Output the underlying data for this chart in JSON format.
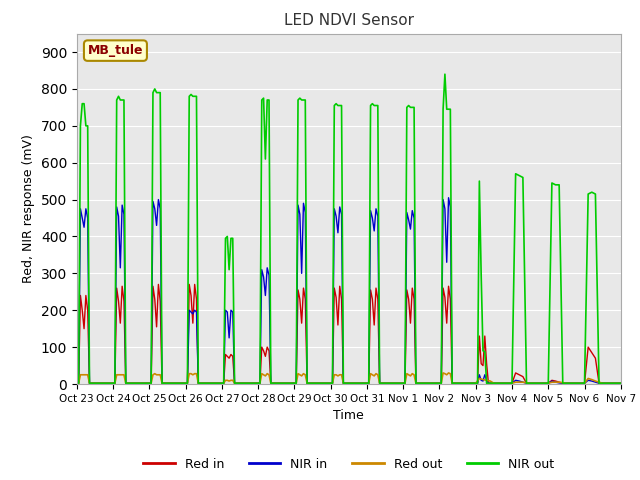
{
  "title": "LED NDVI Sensor",
  "ylabel": "Red, NIR response (mV)",
  "xlabel": "Time",
  "ylim": [
    0,
    950
  ],
  "yticks": [
    0,
    100,
    200,
    300,
    400,
    500,
    600,
    700,
    800,
    900
  ],
  "fig_bg_color": "#ffffff",
  "plot_bg_color": "#e8e8e8",
  "legend_label": "MB_tule",
  "colors": {
    "red_in": "#cc0000",
    "nir_in": "#0000cc",
    "red_out": "#cc8800",
    "nir_out": "#00cc00"
  },
  "tick_labels": [
    "Oct 23",
    "Oct 24",
    "Oct 25",
    "Oct 26",
    "Oct 27",
    "Oct 28",
    "Oct 29",
    "Oct 30",
    "Oct 31",
    "Nov 1",
    "Nov 2",
    "Nov 3",
    "Nov 4",
    "Nov 5",
    "Nov 6",
    "Nov 7"
  ],
  "grid_color": "#ffffff",
  "series": {
    "red_in": {
      "x": [
        0.0,
        0.05,
        0.1,
        0.15,
        0.2,
        0.25,
        0.3,
        0.35,
        0.4,
        0.45,
        0.5,
        1.0,
        1.05,
        1.1,
        1.15,
        1.2,
        1.25,
        1.3,
        1.35,
        1.4,
        1.45,
        1.5,
        2.0,
        2.05,
        2.1,
        2.15,
        2.2,
        2.25,
        2.3,
        2.35,
        2.4,
        2.45,
        2.5,
        3.0,
        3.05,
        3.1,
        3.15,
        3.2,
        3.25,
        3.3,
        3.35,
        3.4,
        3.45,
        3.5,
        4.0,
        4.05,
        4.1,
        4.15,
        4.2,
        4.25,
        4.3,
        4.35,
        4.4,
        4.45,
        4.5,
        5.0,
        5.05,
        5.1,
        5.15,
        5.2,
        5.25,
        5.3,
        5.35,
        5.4,
        5.45,
        5.5,
        6.0,
        6.05,
        6.1,
        6.15,
        6.2,
        6.25,
        6.3,
        6.35,
        6.4,
        6.45,
        6.5,
        7.0,
        7.05,
        7.1,
        7.15,
        7.2,
        7.25,
        7.3,
        7.35,
        7.4,
        7.45,
        7.5,
        8.0,
        8.05,
        8.1,
        8.15,
        8.2,
        8.25,
        8.3,
        8.35,
        8.4,
        8.45,
        8.5,
        9.0,
        9.05,
        9.1,
        9.15,
        9.2,
        9.25,
        9.3,
        9.35,
        9.4,
        9.45,
        9.5,
        10.0,
        10.05,
        10.1,
        10.15,
        10.2,
        10.25,
        10.3,
        10.35,
        10.4,
        10.45,
        10.5,
        11.0,
        11.05,
        11.1,
        11.15,
        11.2,
        11.25,
        11.3,
        11.35,
        11.4,
        11.45,
        11.5,
        12.0,
        12.1,
        12.2,
        12.3,
        12.4,
        12.5,
        13.0,
        13.1,
        13.2,
        13.3,
        13.4,
        13.5,
        14.0,
        14.1,
        14.2,
        14.3,
        14.4,
        14.5,
        15.0
      ],
      "y": [
        2,
        2,
        240,
        200,
        150,
        240,
        200,
        2,
        2,
        2,
        2,
        2,
        2,
        260,
        225,
        165,
        265,
        225,
        2,
        2,
        2,
        2,
        2,
        2,
        265,
        230,
        155,
        270,
        225,
        2,
        2,
        2,
        2,
        2,
        2,
        270,
        240,
        165,
        270,
        230,
        2,
        2,
        2,
        2,
        2,
        2,
        80,
        75,
        70,
        80,
        75,
        2,
        2,
        2,
        2,
        2,
        2,
        100,
        90,
        75,
        100,
        90,
        2,
        2,
        2,
        2,
        2,
        2,
        255,
        230,
        165,
        260,
        230,
        2,
        2,
        2,
        2,
        2,
        2,
        260,
        235,
        160,
        265,
        230,
        2,
        2,
        2,
        2,
        2,
        2,
        255,
        230,
        160,
        260,
        230,
        2,
        2,
        2,
        2,
        2,
        2,
        255,
        230,
        165,
        260,
        230,
        2,
        2,
        2,
        2,
        2,
        2,
        260,
        235,
        165,
        265,
        230,
        2,
        2,
        2,
        2,
        2,
        2,
        130,
        55,
        50,
        130,
        55,
        2,
        2,
        2,
        2,
        2,
        30,
        25,
        20,
        2,
        2,
        2,
        10,
        8,
        5,
        2,
        2,
        2,
        100,
        85,
        70,
        2,
        2,
        2
      ]
    },
    "nir_in": {
      "x": [
        0.0,
        0.05,
        0.1,
        0.15,
        0.2,
        0.25,
        0.3,
        0.35,
        0.4,
        0.45,
        0.5,
        1.0,
        1.05,
        1.1,
        1.15,
        1.2,
        1.25,
        1.3,
        1.35,
        1.4,
        1.45,
        1.5,
        2.0,
        2.05,
        2.1,
        2.15,
        2.2,
        2.25,
        2.3,
        2.35,
        2.4,
        2.45,
        2.5,
        3.0,
        3.05,
        3.1,
        3.15,
        3.2,
        3.25,
        3.3,
        3.35,
        3.4,
        3.45,
        3.5,
        4.0,
        4.05,
        4.1,
        4.15,
        4.2,
        4.25,
        4.3,
        4.35,
        4.4,
        4.45,
        4.5,
        5.0,
        5.05,
        5.1,
        5.15,
        5.2,
        5.25,
        5.3,
        5.35,
        5.4,
        5.45,
        5.5,
        6.0,
        6.05,
        6.1,
        6.15,
        6.2,
        6.25,
        6.3,
        6.35,
        6.4,
        6.45,
        6.5,
        7.0,
        7.05,
        7.1,
        7.15,
        7.2,
        7.25,
        7.3,
        7.35,
        7.4,
        7.45,
        7.5,
        8.0,
        8.05,
        8.1,
        8.15,
        8.2,
        8.25,
        8.3,
        8.35,
        8.4,
        8.45,
        8.5,
        9.0,
        9.05,
        9.1,
        9.15,
        9.2,
        9.25,
        9.3,
        9.35,
        9.4,
        9.45,
        9.5,
        10.0,
        10.05,
        10.1,
        10.15,
        10.2,
        10.25,
        10.3,
        10.35,
        10.4,
        10.45,
        10.5,
        11.0,
        11.05,
        11.1,
        11.15,
        11.2,
        11.25,
        11.3,
        11.35,
        11.4,
        11.45,
        11.5,
        12.0,
        12.1,
        12.2,
        12.3,
        12.4,
        12.5,
        13.0,
        13.1,
        13.2,
        13.3,
        13.4,
        13.5,
        14.0,
        14.1,
        14.2,
        14.3,
        14.4,
        14.5,
        15.0
      ],
      "y": [
        2,
        2,
        475,
        450,
        425,
        475,
        450,
        2,
        2,
        2,
        2,
        2,
        2,
        480,
        455,
        315,
        485,
        460,
        2,
        2,
        2,
        2,
        2,
        2,
        495,
        475,
        430,
        500,
        475,
        2,
        2,
        2,
        2,
        2,
        2,
        200,
        195,
        190,
        200,
        195,
        2,
        2,
        2,
        2,
        2,
        2,
        200,
        195,
        125,
        200,
        195,
        2,
        2,
        2,
        2,
        2,
        2,
        310,
        290,
        240,
        315,
        295,
        2,
        2,
        2,
        2,
        2,
        2,
        485,
        460,
        300,
        490,
        465,
        2,
        2,
        2,
        2,
        2,
        2,
        475,
        455,
        410,
        480,
        460,
        2,
        2,
        2,
        2,
        2,
        2,
        470,
        450,
        415,
        475,
        455,
        2,
        2,
        2,
        2,
        2,
        2,
        465,
        445,
        420,
        470,
        450,
        2,
        2,
        2,
        2,
        2,
        2,
        500,
        475,
        330,
        505,
        480,
        2,
        2,
        2,
        2,
        2,
        2,
        25,
        10,
        8,
        25,
        10,
        2,
        2,
        2,
        2,
        2,
        10,
        8,
        5,
        2,
        2,
        2,
        8,
        5,
        3,
        2,
        2,
        2,
        10,
        8,
        5,
        2,
        2,
        2
      ]
    },
    "red_out": {
      "x": [
        0.0,
        0.05,
        0.1,
        0.15,
        0.2,
        0.25,
        0.3,
        0.35,
        0.4,
        0.45,
        0.5,
        1.0,
        1.05,
        1.1,
        1.15,
        1.2,
        1.25,
        1.3,
        1.35,
        1.4,
        1.45,
        1.5,
        2.0,
        2.05,
        2.1,
        2.15,
        2.2,
        2.25,
        2.3,
        2.35,
        2.4,
        2.45,
        2.5,
        3.0,
        3.05,
        3.1,
        3.15,
        3.2,
        3.25,
        3.3,
        3.35,
        3.4,
        3.45,
        3.5,
        4.0,
        4.05,
        4.1,
        4.15,
        4.2,
        4.25,
        4.3,
        4.35,
        4.4,
        4.45,
        4.5,
        5.0,
        5.05,
        5.1,
        5.15,
        5.2,
        5.25,
        5.3,
        5.35,
        5.4,
        5.45,
        5.5,
        6.0,
        6.05,
        6.1,
        6.15,
        6.2,
        6.25,
        6.3,
        6.35,
        6.4,
        6.45,
        6.5,
        7.0,
        7.05,
        7.1,
        7.15,
        7.2,
        7.25,
        7.3,
        7.35,
        7.4,
        7.45,
        7.5,
        8.0,
        8.05,
        8.1,
        8.15,
        8.2,
        8.25,
        8.3,
        8.35,
        8.4,
        8.45,
        8.5,
        9.0,
        9.05,
        9.1,
        9.15,
        9.2,
        9.25,
        9.3,
        9.35,
        9.4,
        9.45,
        9.5,
        10.0,
        10.05,
        10.1,
        10.15,
        10.2,
        10.25,
        10.3,
        10.35,
        10.4,
        10.45,
        10.5,
        11.0,
        11.1,
        11.2,
        11.3,
        11.4,
        11.5,
        12.0,
        12.1,
        12.2,
        12.3,
        12.5,
        13.0,
        13.1,
        13.2,
        13.3,
        13.5,
        14.0,
        14.1,
        14.2,
        14.3,
        14.5,
        15.0
      ],
      "y": [
        2,
        2,
        25,
        25,
        25,
        25,
        25,
        2,
        2,
        2,
        2,
        2,
        2,
        25,
        25,
        25,
        25,
        25,
        2,
        2,
        2,
        2,
        2,
        2,
        25,
        28,
        25,
        25,
        25,
        2,
        2,
        2,
        2,
        2,
        2,
        28,
        28,
        25,
        28,
        28,
        2,
        2,
        2,
        2,
        2,
        2,
        10,
        10,
        8,
        10,
        10,
        2,
        2,
        2,
        2,
        2,
        2,
        28,
        25,
        22,
        28,
        25,
        2,
        2,
        2,
        2,
        2,
        2,
        28,
        25,
        22,
        28,
        25,
        2,
        2,
        2,
        2,
        2,
        2,
        25,
        25,
        22,
        25,
        25,
        2,
        2,
        2,
        2,
        2,
        2,
        28,
        25,
        22,
        28,
        25,
        2,
        2,
        2,
        2,
        2,
        2,
        28,
        25,
        22,
        28,
        25,
        2,
        2,
        2,
        2,
        2,
        2,
        30,
        28,
        25,
        30,
        28,
        2,
        2,
        2,
        2,
        2,
        15,
        12,
        10,
        8,
        2,
        2,
        5,
        5,
        5,
        2,
        2,
        5,
        5,
        5,
        2,
        2,
        15,
        12,
        8,
        2,
        2
      ]
    },
    "nir_out": {
      "x": [
        0.0,
        0.05,
        0.1,
        0.15,
        0.2,
        0.25,
        0.3,
        0.35,
        0.4,
        0.45,
        0.5,
        1.0,
        1.05,
        1.1,
        1.15,
        1.2,
        1.25,
        1.3,
        1.35,
        1.4,
        1.45,
        1.5,
        2.0,
        2.05,
        2.1,
        2.15,
        2.2,
        2.25,
        2.3,
        2.35,
        2.4,
        2.45,
        2.5,
        3.0,
        3.05,
        3.1,
        3.15,
        3.2,
        3.25,
        3.3,
        3.35,
        3.4,
        3.45,
        3.5,
        4.0,
        4.05,
        4.1,
        4.15,
        4.2,
        4.25,
        4.3,
        4.35,
        4.4,
        4.45,
        4.5,
        5.0,
        5.05,
        5.1,
        5.15,
        5.2,
        5.25,
        5.3,
        5.35,
        5.4,
        5.45,
        5.5,
        6.0,
        6.05,
        6.1,
        6.15,
        6.2,
        6.25,
        6.3,
        6.35,
        6.4,
        6.45,
        6.5,
        7.0,
        7.05,
        7.1,
        7.15,
        7.2,
        7.25,
        7.3,
        7.35,
        7.4,
        7.45,
        7.5,
        8.0,
        8.05,
        8.1,
        8.15,
        8.2,
        8.25,
        8.3,
        8.35,
        8.4,
        8.45,
        8.5,
        9.0,
        9.05,
        9.1,
        9.15,
        9.2,
        9.25,
        9.3,
        9.35,
        9.4,
        9.45,
        9.5,
        10.0,
        10.05,
        10.1,
        10.15,
        10.2,
        10.25,
        10.3,
        10.35,
        10.4,
        10.45,
        10.5,
        11.0,
        11.05,
        11.1,
        11.15,
        11.2,
        11.25,
        11.3,
        11.35,
        11.4,
        11.45,
        11.5,
        12.0,
        12.1,
        12.2,
        12.3,
        12.4,
        12.5,
        13.0,
        13.1,
        13.2,
        13.3,
        13.4,
        13.5,
        14.0,
        14.1,
        14.2,
        14.3,
        14.4,
        14.5,
        15.0
      ],
      "y": [
        2,
        2,
        700,
        760,
        760,
        700,
        700,
        2,
        2,
        2,
        2,
        2,
        2,
        770,
        780,
        770,
        770,
        770,
        2,
        2,
        2,
        2,
        2,
        2,
        790,
        800,
        790,
        790,
        790,
        2,
        2,
        2,
        2,
        2,
        2,
        780,
        785,
        780,
        780,
        780,
        2,
        2,
        2,
        2,
        2,
        2,
        395,
        400,
        310,
        395,
        395,
        2,
        2,
        2,
        2,
        2,
        2,
        770,
        775,
        610,
        770,
        770,
        2,
        2,
        2,
        2,
        2,
        2,
        770,
        775,
        770,
        770,
        770,
        2,
        2,
        2,
        2,
        2,
        2,
        755,
        760,
        755,
        755,
        755,
        2,
        2,
        2,
        2,
        2,
        2,
        755,
        760,
        755,
        755,
        755,
        2,
        2,
        2,
        2,
        2,
        2,
        750,
        755,
        750,
        750,
        750,
        2,
        2,
        2,
        2,
        2,
        2,
        745,
        840,
        745,
        745,
        745,
        2,
        2,
        2,
        2,
        2,
        2,
        550,
        295,
        90,
        88,
        2,
        2,
        2,
        2,
        2,
        2,
        570,
        565,
        560,
        2,
        2,
        2,
        545,
        540,
        540,
        2,
        2,
        2,
        515,
        520,
        515,
        2,
        2,
        2
      ]
    }
  }
}
